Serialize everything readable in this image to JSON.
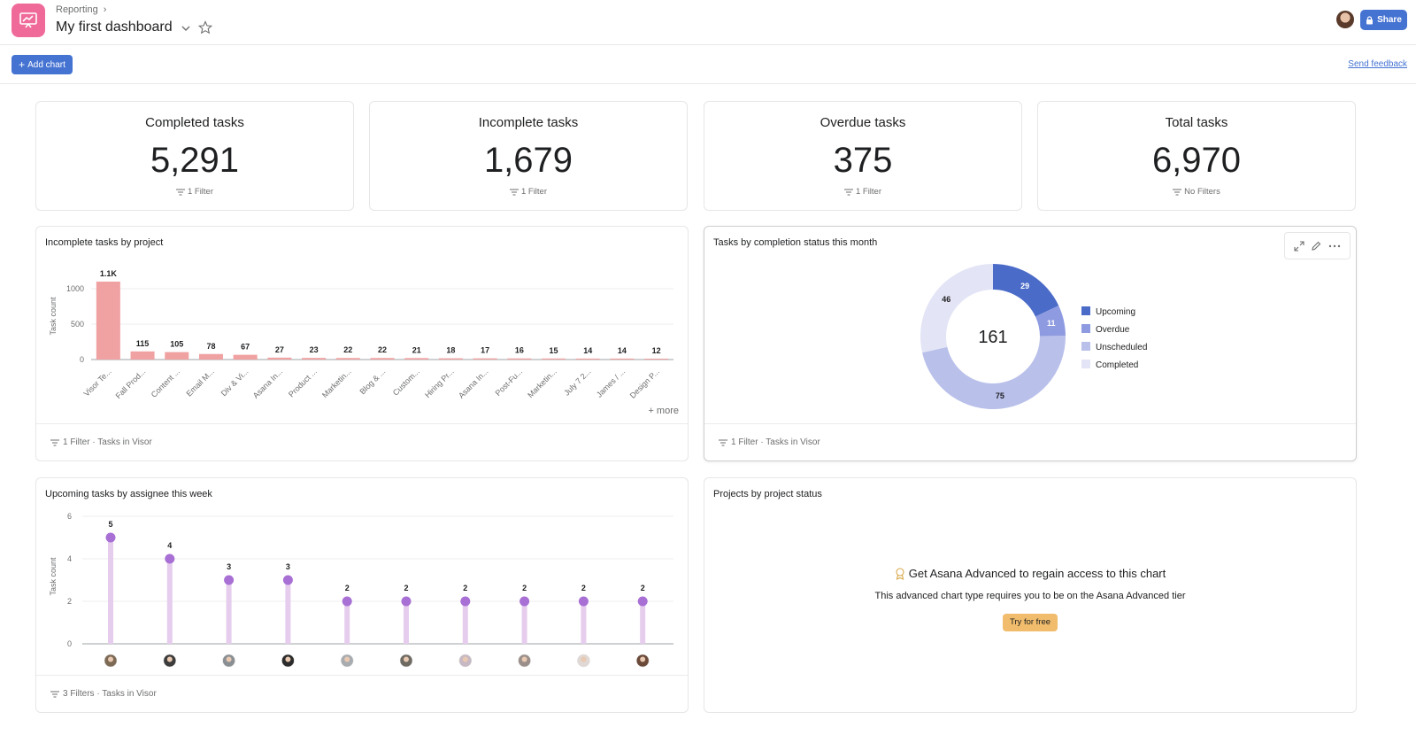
{
  "header": {
    "breadcrumb": "Reporting",
    "title": "My first dashboard",
    "share_label": "Share"
  },
  "toolbar": {
    "add_chart_label": "Add chart",
    "send_feedback_label": "Send feedback"
  },
  "stats": [
    {
      "label": "Completed tasks",
      "value": "5,291",
      "filter": "1 Filter"
    },
    {
      "label": "Incomplete tasks",
      "value": "1,679",
      "filter": "1 Filter"
    },
    {
      "label": "Overdue tasks",
      "value": "375",
      "filter": "1 Filter"
    },
    {
      "label": "Total tasks",
      "value": "6,970",
      "filter": "No Filters"
    }
  ],
  "charts": {
    "incomplete_by_project": {
      "title": "Incomplete tasks by project",
      "footer": "1 Filter · Tasks in Visor",
      "more_label": "+ more"
    },
    "completion_status": {
      "title": "Tasks by completion status this month",
      "footer": "1 Filter · Tasks in Visor"
    },
    "upcoming_by_assignee": {
      "title": "Upcoming tasks by assignee this week",
      "footer": "3 Filters · Tasks in Visor"
    },
    "projects_by_status": {
      "title": "Projects by project status",
      "locked_title": "Get Asana Advanced to regain access to this chart",
      "locked_sub": "This advanced chart type requires you to be on the Asana Advanced tier",
      "try_label": "Try for free"
    }
  },
  "chart_data": [
    {
      "type": "bar",
      "title": "Incomplete tasks by project",
      "ylabel": "Task count",
      "ylim": [
        0,
        1100
      ],
      "yticks": [
        0,
        500,
        1000
      ],
      "categories": [
        "Visor Te...",
        "Fall Prod...",
        "Content ...",
        "Email M...",
        "Div & Vi...",
        "Asana In...",
        "Product ...",
        "Marketin...",
        "Blog & ...",
        "Custom...",
        "Hiring Pr...",
        "Asana In...",
        "Post-Fu...",
        "Marketin...",
        "July 7 2...",
        "James / ...",
        "Design P..."
      ],
      "values": [
        1100,
        115,
        105,
        78,
        67,
        27,
        23,
        22,
        22,
        21,
        18,
        17,
        16,
        15,
        14,
        14,
        12
      ],
      "value_labels": [
        "1.1K",
        "115",
        "105",
        "78",
        "67",
        "27",
        "23",
        "22",
        "22",
        "21",
        "18",
        "17",
        "16",
        "15",
        "14",
        "14",
        "12"
      ],
      "color": "#f0a1a1"
    },
    {
      "type": "pie",
      "title": "Tasks by completion status this month",
      "center_label": "161",
      "series": [
        {
          "name": "Upcoming",
          "value": 29,
          "color": "#4b6bc8"
        },
        {
          "name": "Overdue",
          "value": 11,
          "color": "#8e9be0"
        },
        {
          "name": "Unscheduled",
          "value": 75,
          "color": "#b9c0ea"
        },
        {
          "name": "Completed",
          "value": 46,
          "color": "#e3e5f6"
        }
      ]
    },
    {
      "type": "scatter",
      "title": "Upcoming tasks by assignee this week",
      "ylabel": "Task count",
      "ylim": [
        0,
        6
      ],
      "yticks": [
        0,
        2,
        4,
        6
      ],
      "values": [
        5,
        4,
        3,
        3,
        2,
        2,
        2,
        2,
        2,
        2
      ],
      "color": "#a86fd4",
      "stem_color": "#e6cdee"
    }
  ]
}
